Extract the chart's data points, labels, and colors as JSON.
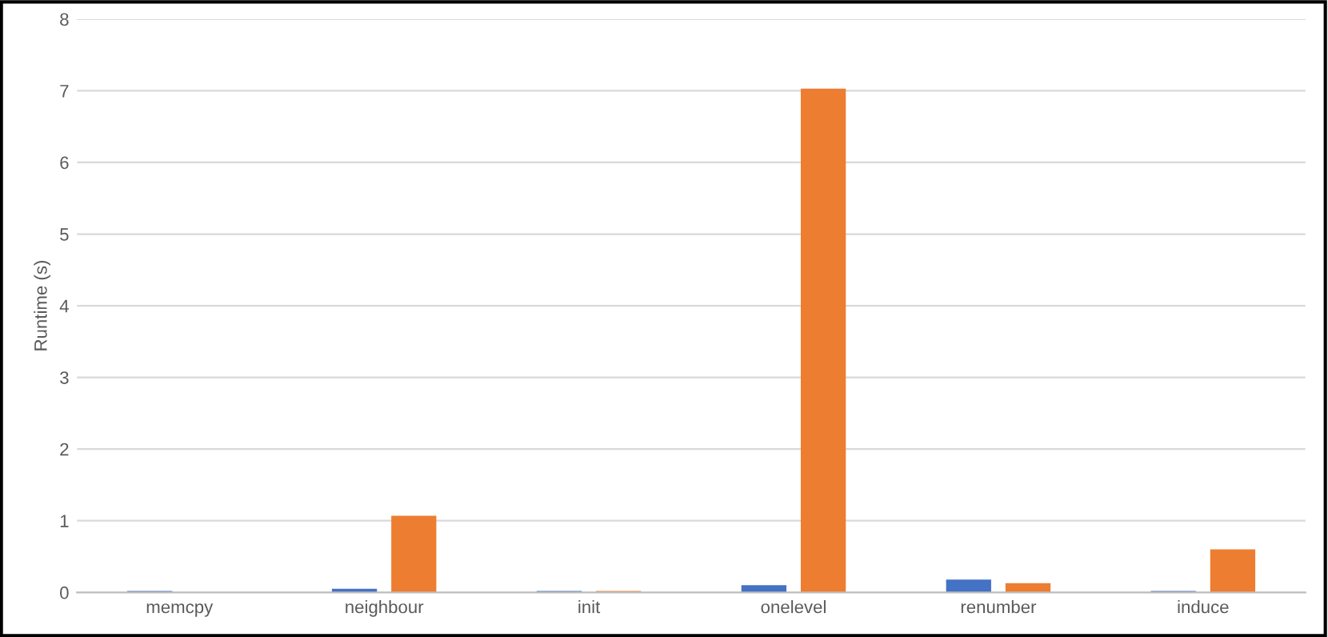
{
  "chart_data": {
    "type": "bar",
    "ylabel": "Runtime (s)",
    "categories": [
      "memcpy",
      "neighbour",
      "init",
      "onelevel",
      "renumber",
      "induce"
    ],
    "series": [
      {
        "color": "#4472c4",
        "values": [
          0.02,
          0.05,
          0.02,
          0.1,
          0.18,
          0.02
        ]
      },
      {
        "color": "#ed7d31",
        "values": [
          0,
          1.07,
          0.02,
          7.03,
          0.13,
          0.6
        ]
      }
    ],
    "ylim": [
      0,
      8
    ],
    "yticks": [
      0,
      1,
      2,
      3,
      4,
      5,
      6,
      7,
      8
    ],
    "grid": "y"
  }
}
